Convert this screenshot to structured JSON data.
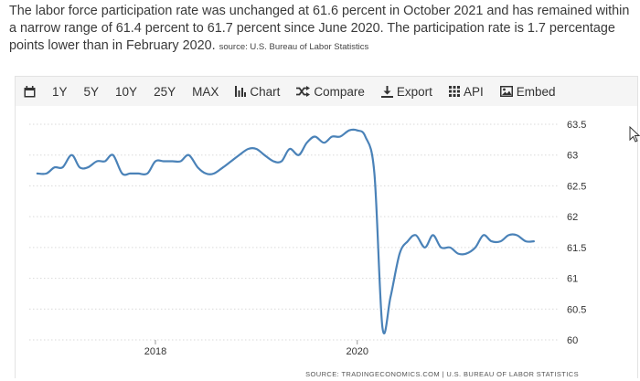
{
  "description": {
    "text": "The labor force participation rate was unchanged at 61.6 percent in October 2021 and has remained within a narrow range of 61.4 percent to 61.7 percent since June 2020. The participation rate is 1.7 percentage points lower than in February 2020.",
    "source": "source: U.S. Bureau of Labor Statistics"
  },
  "toolbar": {
    "calendar_icon": "calendar-icon",
    "ranges": [
      "1Y",
      "5Y",
      "10Y",
      "25Y",
      "MAX"
    ],
    "chart_label": "Chart",
    "compare_label": "Compare",
    "export_label": "Export",
    "api_label": "API",
    "embed_label": "Embed"
  },
  "chart_data": {
    "type": "line",
    "line_color": "#4a82b8",
    "yticks": [
      "63.5",
      "63",
      "62.5",
      "62",
      "61.5",
      "61",
      "60.5",
      "60"
    ],
    "xticks": [
      {
        "value": 2018,
        "label": "2018"
      },
      {
        "value": 2020,
        "label": "2020"
      }
    ],
    "ylim": [
      60,
      63.5
    ],
    "xlim": [
      2016.75,
      2021.95
    ],
    "grid": true,
    "footer": "SOURCE: TRADINGECONOMICS.COM | U.S. BUREAU OF LABOR STATISTICS",
    "x": [
      2016.83,
      2016.92,
      2017.0,
      2017.08,
      2017.17,
      2017.25,
      2017.33,
      2017.42,
      2017.5,
      2017.58,
      2017.67,
      2017.75,
      2017.83,
      2017.92,
      2018.0,
      2018.08,
      2018.17,
      2018.25,
      2018.33,
      2018.42,
      2018.5,
      2018.58,
      2018.67,
      2018.75,
      2018.83,
      2018.92,
      2019.0,
      2019.08,
      2019.17,
      2019.25,
      2019.33,
      2019.42,
      2019.5,
      2019.58,
      2019.67,
      2019.75,
      2019.83,
      2019.92,
      2020.0,
      2020.08,
      2020.17,
      2020.25,
      2020.33,
      2020.42,
      2020.5,
      2020.58,
      2020.67,
      2020.75,
      2020.83,
      2020.92,
      2021.0,
      2021.08,
      2021.17,
      2021.25,
      2021.33,
      2021.42,
      2021.5,
      2021.58,
      2021.67,
      2021.75
    ],
    "y": [
      62.7,
      62.7,
      62.8,
      62.8,
      63.0,
      62.8,
      62.8,
      62.9,
      62.9,
      63.0,
      62.7,
      62.7,
      62.7,
      62.7,
      62.9,
      62.9,
      62.9,
      62.9,
      63.0,
      62.8,
      62.7,
      62.7,
      62.8,
      62.9,
      63.0,
      63.1,
      63.1,
      63.0,
      62.9,
      62.9,
      63.1,
      63.0,
      63.2,
      63.3,
      63.2,
      63.3,
      63.3,
      63.4,
      63.4,
      63.3,
      62.7,
      60.2,
      60.7,
      61.4,
      61.6,
      61.7,
      61.5,
      61.7,
      61.5,
      61.5,
      61.4,
      61.4,
      61.5,
      61.7,
      61.6,
      61.6,
      61.7,
      61.7,
      61.6,
      61.6
    ]
  }
}
